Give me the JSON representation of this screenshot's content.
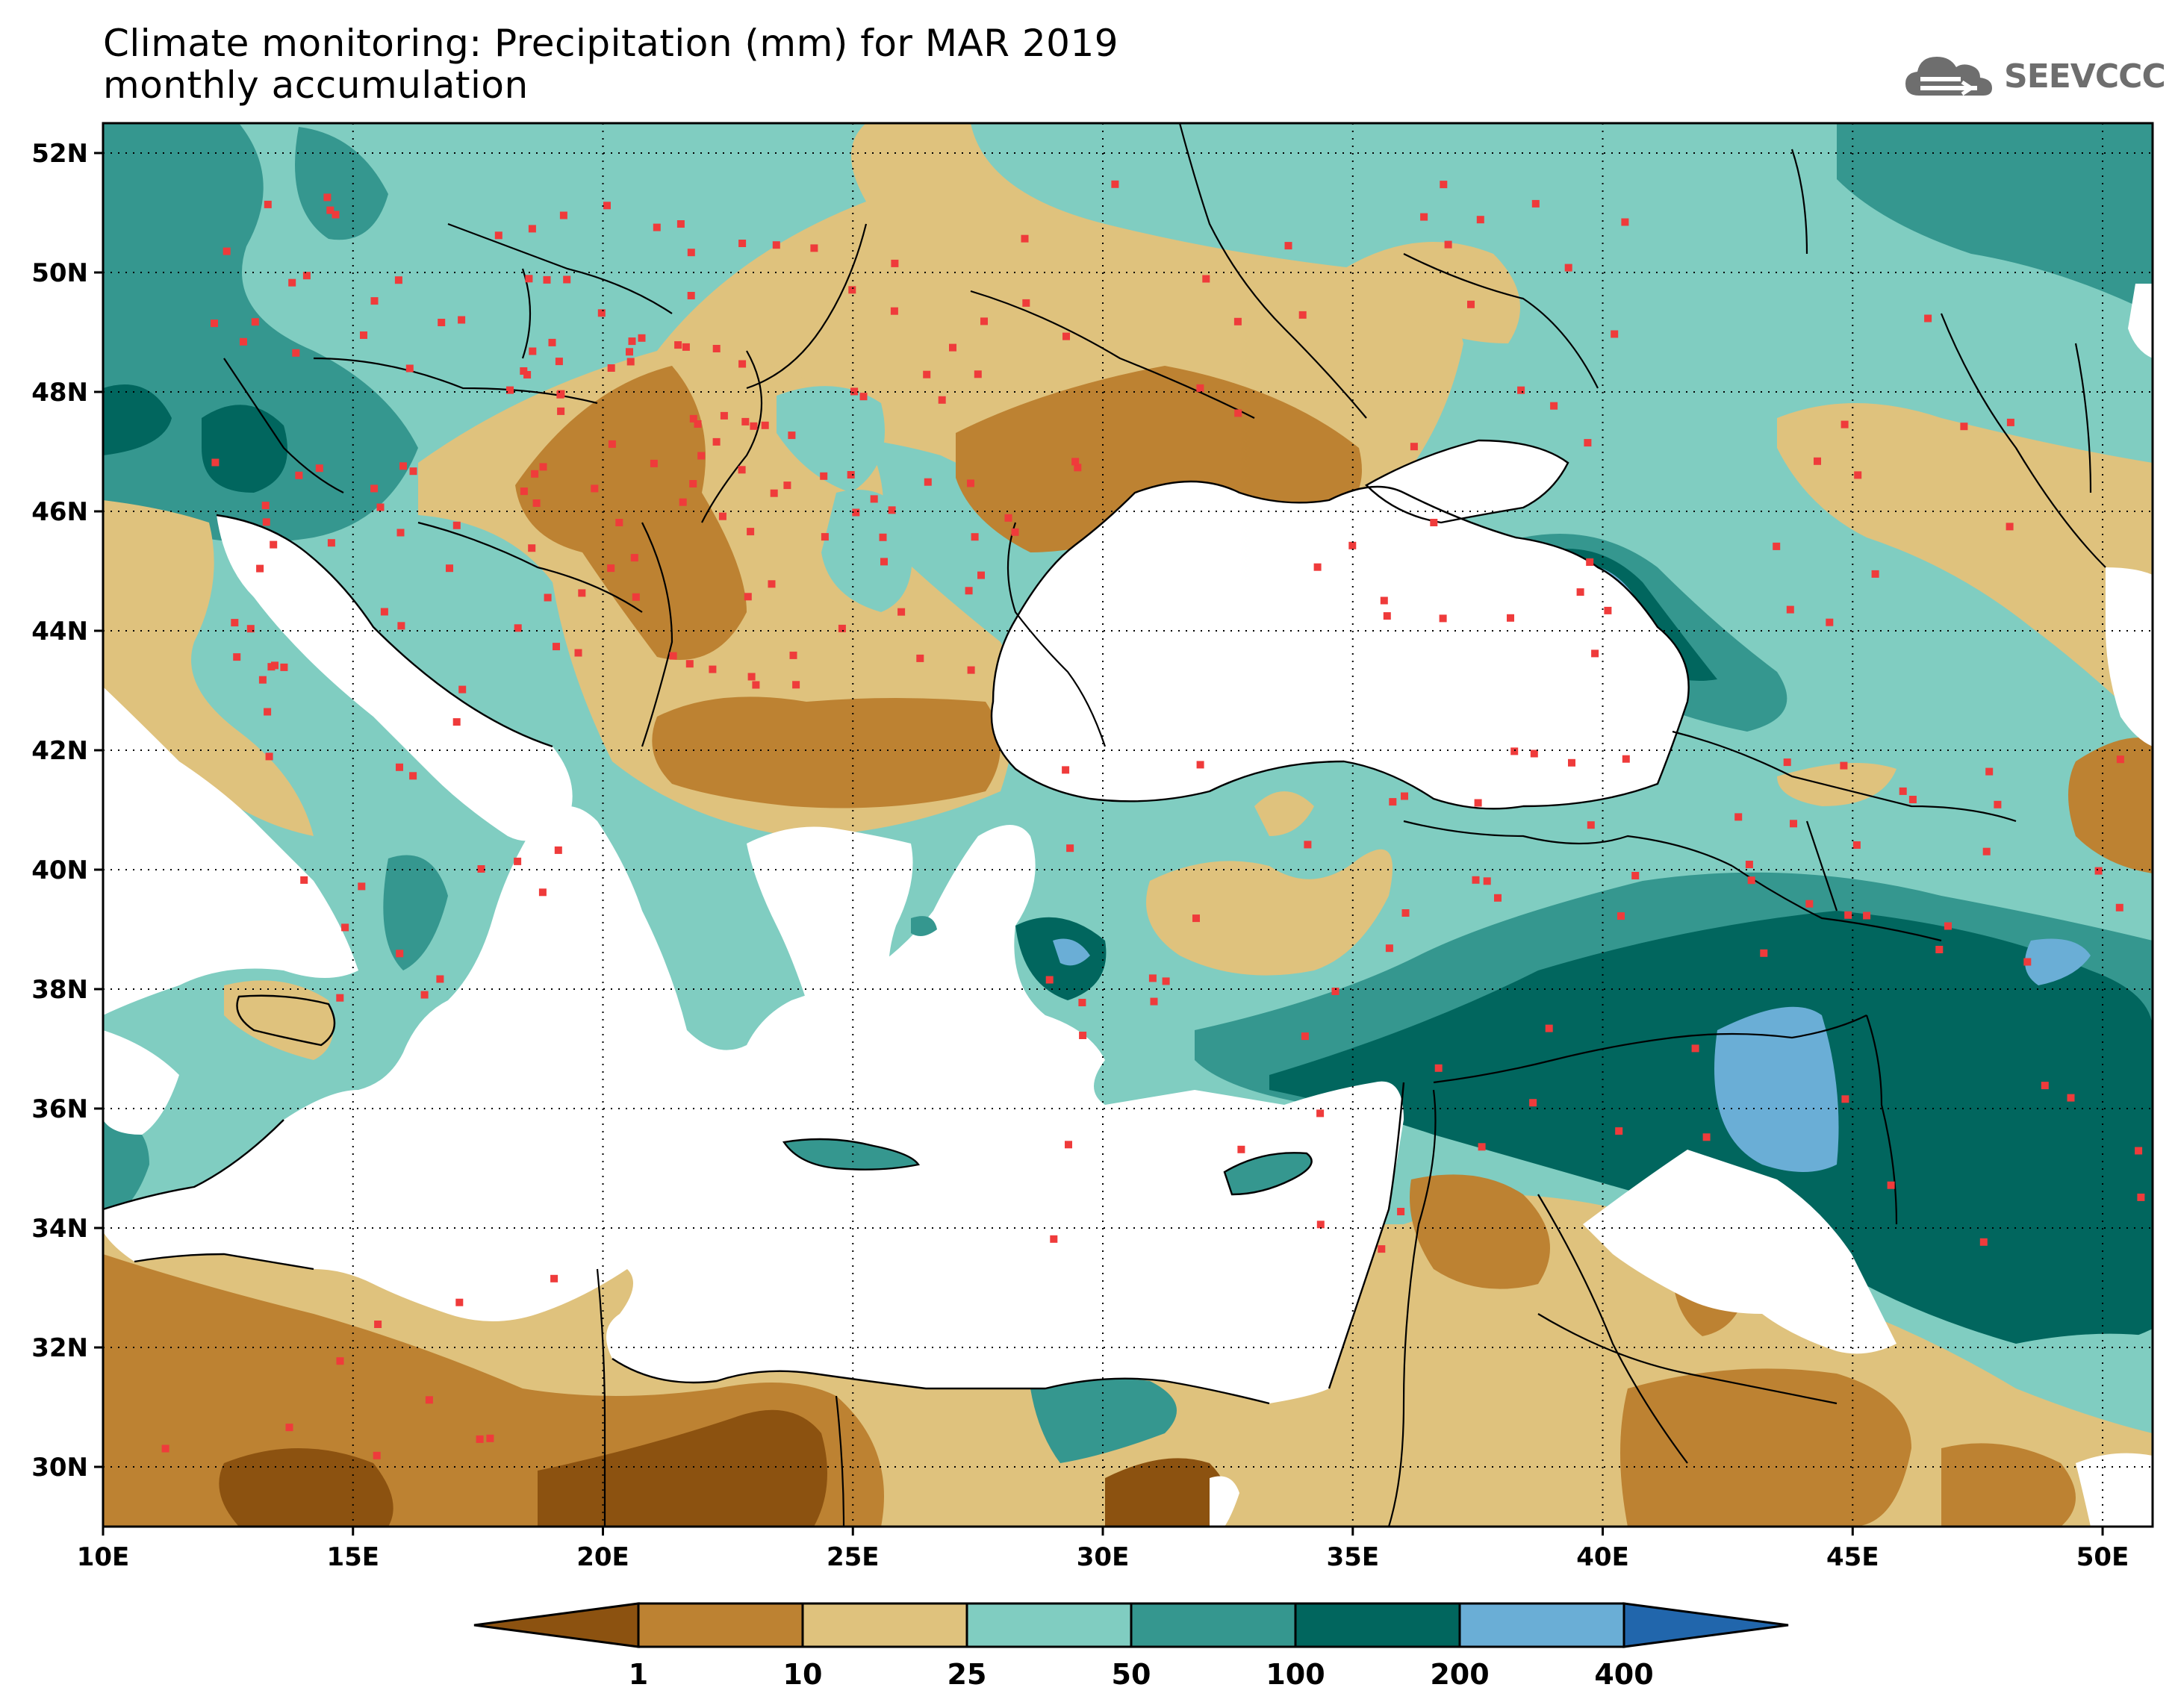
{
  "title": {
    "line1": "Climate monitoring: Precipitation (mm) for MAR 2019",
    "line2": "monthly accumulation"
  },
  "logo": {
    "text": "SEEVCCC",
    "icon": "cloud-icon"
  },
  "map": {
    "lon_range": [
      10,
      51
    ],
    "lat_range": [
      29,
      52.5
    ],
    "lon_ticks": [
      {
        "value": 10,
        "label": "10E"
      },
      {
        "value": 15,
        "label": "15E"
      },
      {
        "value": 20,
        "label": "20E"
      },
      {
        "value": 25,
        "label": "25E"
      },
      {
        "value": 30,
        "label": "30E"
      },
      {
        "value": 35,
        "label": "35E"
      },
      {
        "value": 40,
        "label": "40E"
      },
      {
        "value": 45,
        "label": "45E"
      },
      {
        "value": 50,
        "label": "50E"
      }
    ],
    "lat_ticks": [
      {
        "value": 52,
        "label": "52N"
      },
      {
        "value": 50,
        "label": "50N"
      },
      {
        "value": 48,
        "label": "48N"
      },
      {
        "value": 46,
        "label": "46N"
      },
      {
        "value": 44,
        "label": "44N"
      },
      {
        "value": 42,
        "label": "42N"
      },
      {
        "value": 40,
        "label": "40N"
      },
      {
        "value": 38,
        "label": "38N"
      },
      {
        "value": 36,
        "label": "36N"
      },
      {
        "value": 34,
        "label": "34N"
      },
      {
        "value": 32,
        "label": "32N"
      },
      {
        "value": 30,
        "label": "30N"
      }
    ],
    "gridlines": "dotted"
  },
  "colorbar": {
    "colors": [
      "#8c5210",
      "#bd8232",
      "#dfc27d",
      "#80cdc1",
      "#35978f",
      "#01665e",
      "#6aaed6",
      "#2166ac"
    ],
    "labels": [
      "1",
      "10",
      "25",
      "50",
      "100",
      "200",
      "400"
    ]
  },
  "palette": {
    "c0": "#8c5210",
    "c1": "#bd8232",
    "c2": "#dfc27d",
    "c3": "#80cdc1",
    "c4": "#35978f",
    "c5": "#01665e",
    "c6": "#6aaed6",
    "station": "#ef3b3b"
  }
}
